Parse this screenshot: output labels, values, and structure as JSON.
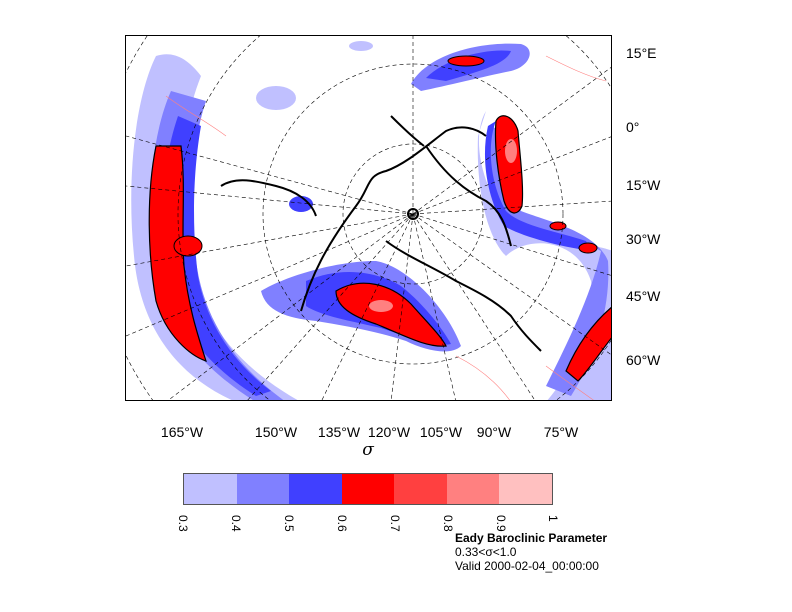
{
  "map": {
    "lon_labels": [
      "165°W",
      "150°W",
      "135°W",
      "120°W",
      "105°W",
      "90°W",
      "75°W"
    ],
    "lat_labels": [
      "15°E",
      "0°",
      "15°W",
      "30°W",
      "45°W",
      "60°W"
    ],
    "x_axis_title": "σ"
  },
  "colorbar": {
    "labels": [
      "0.3",
      "0.4",
      "0.5",
      "0.6",
      "0.7",
      "0.8",
      "0.9",
      "1"
    ],
    "colors": [
      "#c0c0ff",
      "#8080ff",
      "#4040ff",
      "#ff0000",
      "#ff4040",
      "#ff8080",
      "#ffc0c0"
    ]
  },
  "info": {
    "title": "Eady Baroclinic Parameter",
    "range": "0.33<σ<1.0",
    "valid": "Valid 2000-02-04_00:00:00"
  }
}
